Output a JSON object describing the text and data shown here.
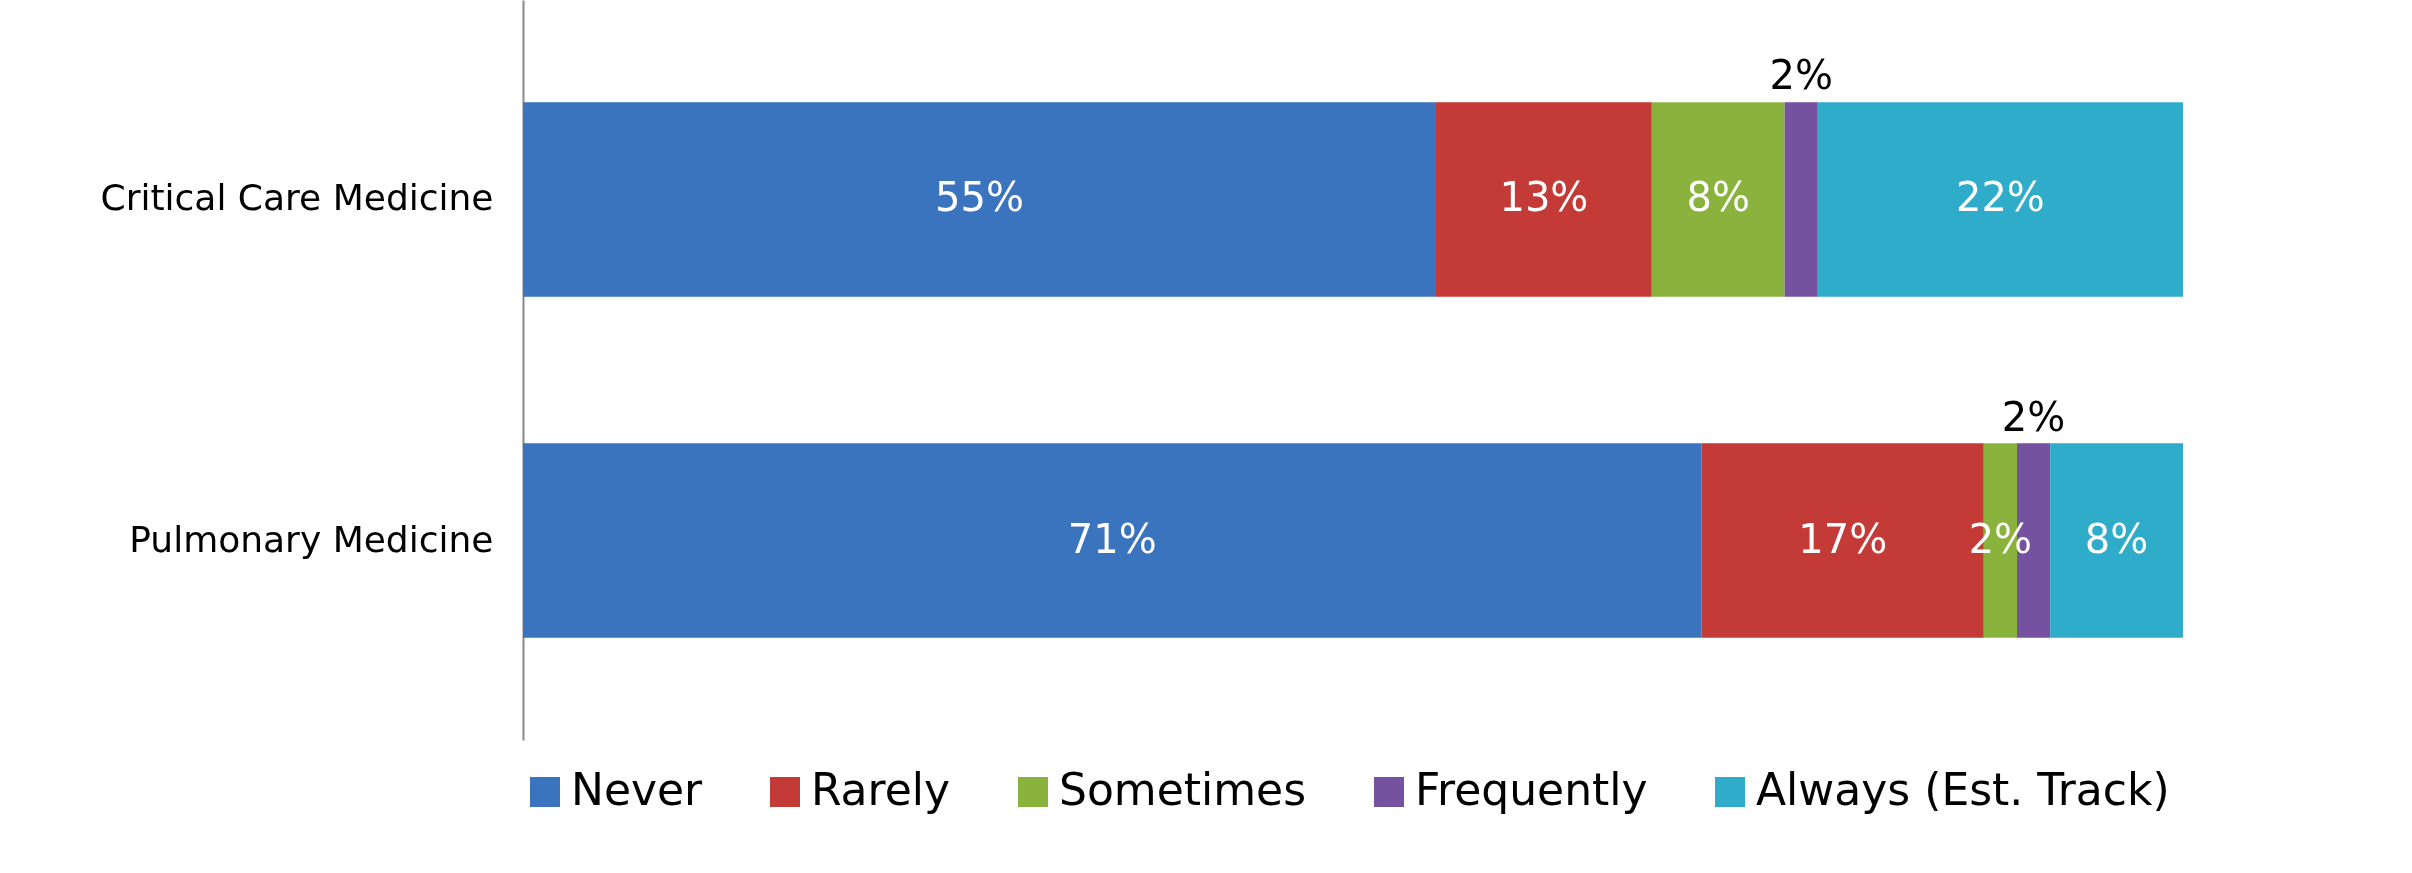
{
  "chart_data": {
    "type": "bar",
    "orientation": "horizontal",
    "stacked": true,
    "legend": "bottom",
    "categories": [
      "Critical Care Medicine",
      "Pulmonary Medicine"
    ],
    "series": [
      {
        "name": "Never",
        "color": "#3a73be",
        "values": [
          55,
          71
        ],
        "value_labels": [
          "55%",
          "71%"
        ]
      },
      {
        "name": "Rarely",
        "color": "#c43a36",
        "values": [
          13,
          17
        ],
        "value_labels": [
          "13%",
          "17%"
        ]
      },
      {
        "name": "Sometimes",
        "color": "#8ab33e",
        "values": [
          8,
          2
        ],
        "value_labels": [
          "8%",
          "2%"
        ]
      },
      {
        "name": "Frequently",
        "color": "#7452a0",
        "values": [
          2,
          2
        ],
        "value_labels": [
          "2%",
          "2%"
        ]
      },
      {
        "name": "Always (Est. Track)",
        "color": "#2eacc9",
        "values": [
          22,
          8
        ],
        "value_labels": [
          "22%",
          "8%"
        ]
      }
    ]
  }
}
